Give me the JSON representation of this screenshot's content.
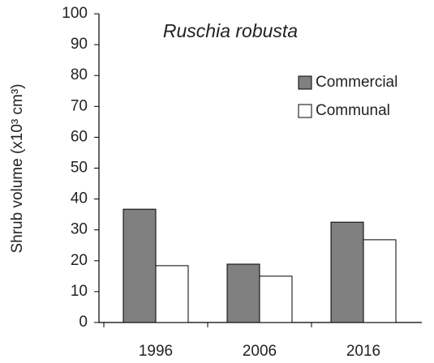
{
  "chart_data": {
    "type": "bar",
    "title": "Ruschia robusta",
    "y_label": "Shrub volume (x10³ cm³)",
    "categories": [
      "1996",
      "2006",
      "2016"
    ],
    "series": [
      {
        "name": "Commercial",
        "color": "#808080",
        "values": [
          36.7,
          18.9,
          32.5
        ]
      },
      {
        "name": "Communal",
        "color": "#ffffff",
        "values": [
          18.4,
          15.0,
          26.8
        ]
      }
    ],
    "ylim": [
      0,
      100
    ],
    "yticks": [
      0,
      10,
      20,
      30,
      40,
      50,
      60,
      70,
      80,
      90,
      100
    ],
    "grid": false,
    "legend": "right"
  }
}
